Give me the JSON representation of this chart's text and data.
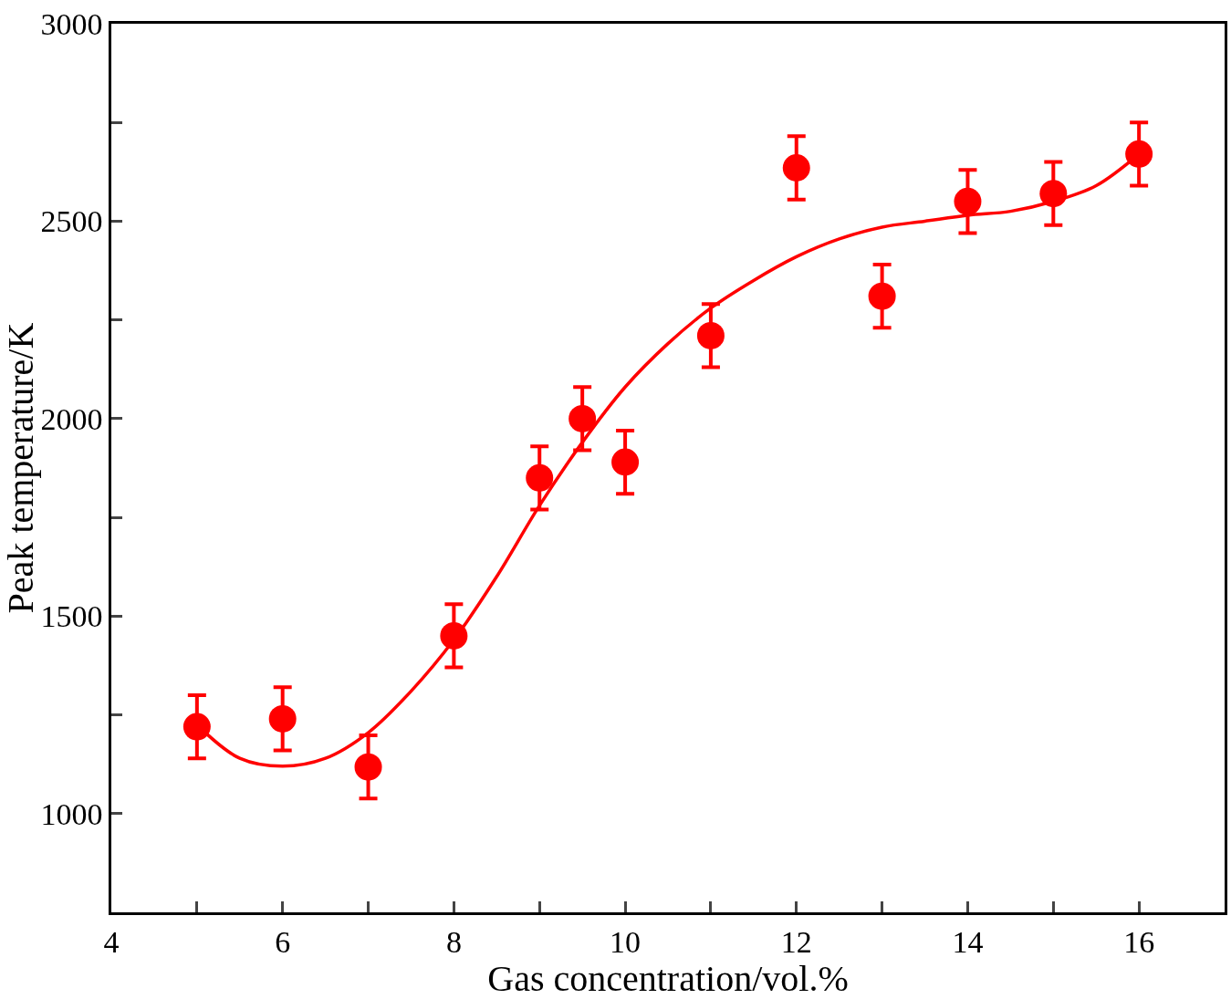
{
  "chart_data": {
    "type": "scatter",
    "xlabel": "Gas concentration/vol.%",
    "ylabel": "Peak temperature/K",
    "xlim": [
      4,
      17
    ],
    "ylim": [
      750,
      3000
    ],
    "xticks": [
      4,
      {
        "value": 5,
        "label": null
      },
      6,
      {
        "value": 7,
        "label": null
      },
      8,
      {
        "value": 9,
        "label": null
      },
      10,
      {
        "value": 11,
        "label": null
      },
      12,
      {
        "value": 13,
        "label": null
      },
      14,
      {
        "value": 15,
        "label": null
      },
      16
    ],
    "yticks": [
      {
        "value": 750,
        "label": null
      },
      1000,
      {
        "value": 1250,
        "label": null
      },
      1500,
      {
        "value": 1750,
        "label": null
      },
      2000,
      {
        "value": 2250,
        "label": null
      },
      2500,
      {
        "value": 2750,
        "label": null
      },
      3000
    ],
    "grid": false,
    "series": [
      {
        "marker": "circle",
        "color": "#ff0000",
        "x": [
          5,
          6,
          7,
          8,
          9,
          9.5,
          10,
          11,
          12,
          13,
          14,
          15,
          16
        ],
        "values": [
          1220,
          1240,
          1118,
          1450,
          1850,
          2000,
          1890,
          2210,
          2635,
          2310,
          2550,
          2570,
          2670
        ],
        "errors": [
          80,
          80,
          80,
          80,
          80,
          80,
          80,
          80,
          80,
          80,
          80,
          80,
          80
        ]
      },
      {
        "type": "line",
        "marker": "none",
        "color": "#ff0000",
        "line_style": "solid",
        "x": [
          5,
          5.5,
          6,
          6.5,
          7,
          7.5,
          8,
          8.5,
          9,
          9.5,
          10,
          10.5,
          11,
          11.5,
          12,
          12.5,
          13,
          13.5,
          14,
          14.5,
          15,
          15.5,
          16
        ],
        "values": [
          1225,
          1140,
          1120,
          1140,
          1205,
          1310,
          1440,
          1600,
          1780,
          1940,
          2080,
          2190,
          2280,
          2350,
          2410,
          2455,
          2485,
          2500,
          2515,
          2525,
          2550,
          2590,
          2670
        ]
      }
    ]
  }
}
